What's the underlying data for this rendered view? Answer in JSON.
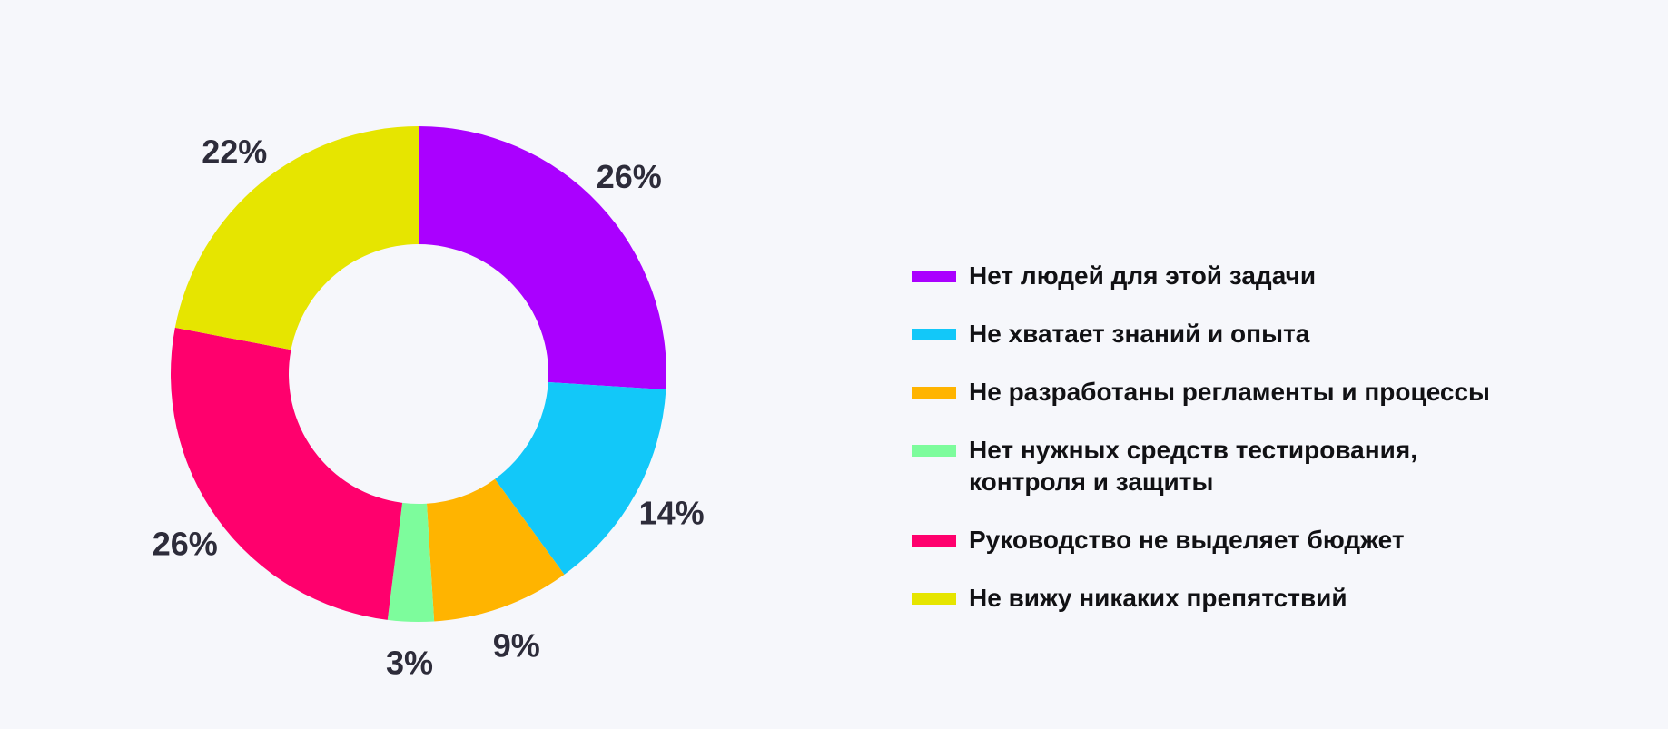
{
  "chart_data": {
    "type": "pie",
    "variant": "donut",
    "categories": [
      "Нет людей для этой задачи",
      "Не хватает знаний и опыта",
      "Не разработаны регламенты и процессы",
      "Нет нужных средств тестирования,\nконтроля и защиты",
      "Руководство не выделяет бюджет",
      "Не вижу никаких препятствий"
    ],
    "values": [
      26,
      14,
      9,
      3,
      26,
      22
    ],
    "labels": [
      "26%",
      "14%",
      "9%",
      "3%",
      "26%",
      "22%"
    ],
    "colors": [
      "#aa00ff",
      "#12c8f9",
      "#ffb400",
      "#7dfc9c",
      "#ff006d",
      "#e6e500"
    ],
    "legend": {
      "position": "right"
    }
  }
}
